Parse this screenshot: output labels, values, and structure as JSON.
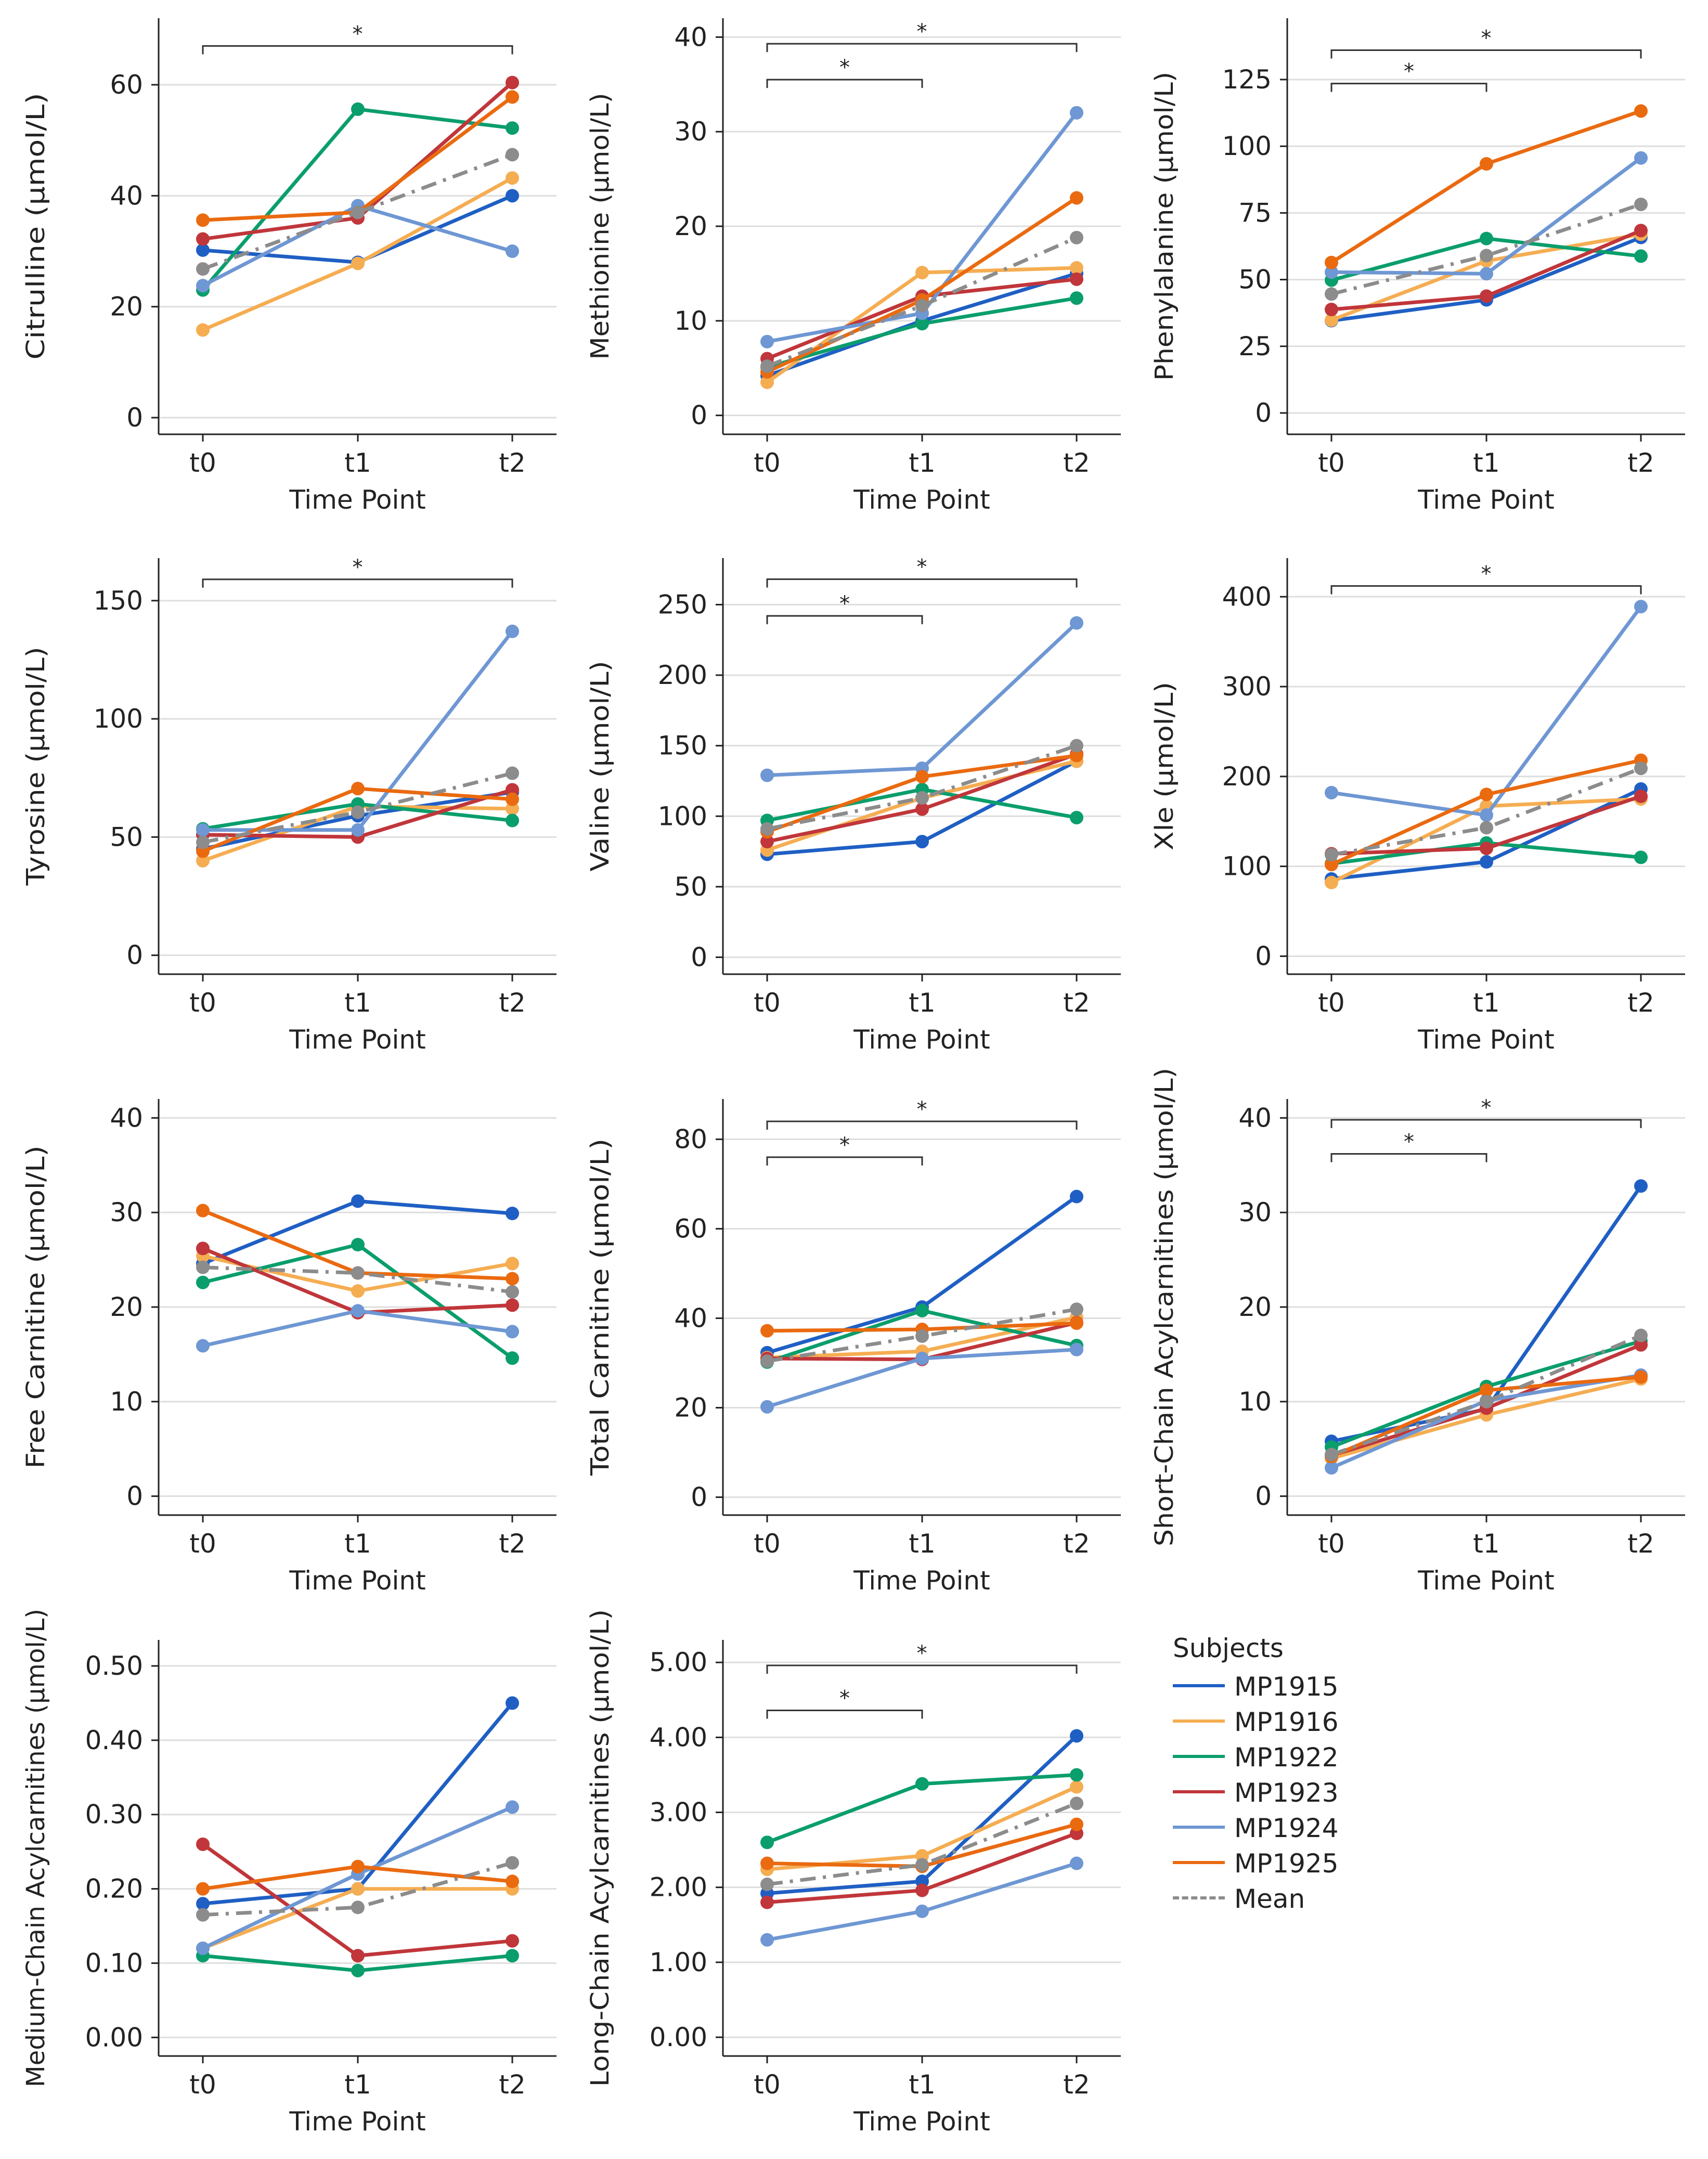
{
  "x_label": "Time Point",
  "legend": {
    "title": "Subjects",
    "items": [
      {
        "name": "MP1915",
        "color": "#1f5fc4",
        "dashed": false
      },
      {
        "name": "MP1916",
        "color": "#f5ad52",
        "dashed": false
      },
      {
        "name": "MP1922",
        "color": "#0a9e6c",
        "dashed": false
      },
      {
        "name": "MP1923",
        "color": "#c0363a",
        "dashed": false
      },
      {
        "name": "MP1924",
        "color": "#6e97d3",
        "dashed": false
      },
      {
        "name": "MP1925",
        "color": "#ea6a10",
        "dashed": false
      },
      {
        "name": "Mean",
        "color": "#8c8c8c",
        "dashed": true
      }
    ]
  },
  "chart_data": [
    {
      "type": "line",
      "title": "Citrulline",
      "ylabel": "Citrulline (µmol/L)",
      "xlabel": "Time Point",
      "categories": [
        "t0",
        "t1",
        "t2"
      ],
      "ylim": [
        -3,
        72
      ],
      "yticks": [
        0,
        20,
        40,
        60
      ],
      "ytick_labels": [
        "0",
        "20",
        "40",
        "60"
      ],
      "series": [
        {
          "name": "MP1915",
          "values": [
            30.2,
            28.0,
            40.0
          ]
        },
        {
          "name": "MP1916",
          "values": [
            15.8,
            27.8,
            43.2
          ]
        },
        {
          "name": "MP1922",
          "values": [
            23.0,
            55.6,
            52.2
          ]
        },
        {
          "name": "MP1923",
          "values": [
            32.2,
            36.0,
            60.4
          ]
        },
        {
          "name": "MP1924",
          "values": [
            23.8,
            38.2,
            30.0
          ]
        },
        {
          "name": "MP1925",
          "values": [
            35.6,
            37.0,
            57.8
          ]
        },
        {
          "name": "Mean",
          "values": [
            26.8,
            37.0,
            47.4
          ]
        }
      ],
      "significance": [
        {
          "from": 0,
          "to": 2,
          "label": "*",
          "level": 67
        }
      ]
    },
    {
      "type": "line",
      "title": "Methionine",
      "ylabel": "Methionine (µmol/L)",
      "xlabel": "Time Point",
      "categories": [
        "t0",
        "t1",
        "t2"
      ],
      "ylim": [
        -2,
        42
      ],
      "yticks": [
        0,
        10,
        20,
        30,
        40
      ],
      "ytick_labels": [
        "0",
        "10",
        "20",
        "30",
        "40"
      ],
      "series": [
        {
          "name": "MP1915",
          "values": [
            4.2,
            10.0,
            15.0
          ]
        },
        {
          "name": "MP1916",
          "values": [
            3.5,
            15.1,
            15.6
          ]
        },
        {
          "name": "MP1922",
          "values": [
            5.1,
            9.7,
            12.4
          ]
        },
        {
          "name": "MP1923",
          "values": [
            6.0,
            12.6,
            14.4
          ]
        },
        {
          "name": "MP1924",
          "values": [
            7.8,
            10.8,
            32.0
          ]
        },
        {
          "name": "MP1925",
          "values": [
            4.6,
            12.2,
            23.0
          ]
        },
        {
          "name": "Mean",
          "values": [
            5.2,
            11.6,
            18.8
          ]
        }
      ],
      "significance": [
        {
          "from": 0,
          "to": 1,
          "label": "*",
          "level": 35.5
        },
        {
          "from": 0,
          "to": 2,
          "label": "*",
          "level": 39.3
        }
      ]
    },
    {
      "type": "line",
      "title": "Phenylalanine",
      "ylabel": "Phenylalanine (µmol/L)",
      "xlabel": "Time Point",
      "categories": [
        "t0",
        "t1",
        "t2"
      ],
      "ylim": [
        -8,
        148
      ],
      "yticks": [
        0,
        25,
        50,
        75,
        100,
        125
      ],
      "ytick_labels": [
        "0",
        "25",
        "50",
        "75",
        "100",
        "125"
      ],
      "series": [
        {
          "name": "MP1915",
          "values": [
            34.6,
            42.4,
            65.8
          ]
        },
        {
          "name": "MP1916",
          "values": [
            34.8,
            57.0,
            67.0
          ]
        },
        {
          "name": "MP1922",
          "values": [
            49.8,
            65.4,
            58.8
          ]
        },
        {
          "name": "MP1923",
          "values": [
            38.8,
            43.8,
            68.4
          ]
        },
        {
          "name": "MP1924",
          "values": [
            52.8,
            52.2,
            95.6
          ]
        },
        {
          "name": "MP1925",
          "values": [
            56.4,
            93.4,
            113.2
          ]
        },
        {
          "name": "Mean",
          "values": [
            44.6,
            59.0,
            78.2
          ]
        }
      ],
      "significance": [
        {
          "from": 0,
          "to": 1,
          "label": "*",
          "level": 123.5
        },
        {
          "from": 0,
          "to": 2,
          "label": "*",
          "level": 136
        }
      ]
    },
    {
      "type": "line",
      "title": "Tyrosine",
      "ylabel": "Tyrosine (µmol/L)",
      "xlabel": "Time Point",
      "categories": [
        "t0",
        "t1",
        "t2"
      ],
      "ylim": [
        -8,
        168
      ],
      "yticks": [
        0,
        50,
        100,
        150
      ],
      "ytick_labels": [
        "0",
        "50",
        "100",
        "150"
      ],
      "series": [
        {
          "name": "MP1915",
          "values": [
            45.0,
            59.0,
            69.0
          ]
        },
        {
          "name": "MP1916",
          "values": [
            40.0,
            63.0,
            62.0
          ]
        },
        {
          "name": "MP1922",
          "values": [
            53.5,
            64.0,
            57.0
          ]
        },
        {
          "name": "MP1923",
          "values": [
            51.0,
            50.0,
            70.0
          ]
        },
        {
          "name": "MP1924",
          "values": [
            53.0,
            53.0,
            137.0
          ]
        },
        {
          "name": "MP1925",
          "values": [
            44.0,
            70.5,
            66.0
          ]
        },
        {
          "name": "Mean",
          "values": [
            47.8,
            60.5,
            77.0
          ]
        }
      ],
      "significance": [
        {
          "from": 0,
          "to": 2,
          "label": "*",
          "level": 159
        }
      ]
    },
    {
      "type": "line",
      "title": "Valine",
      "ylabel": "Valine (µmol/L)",
      "xlabel": "Time Point",
      "categories": [
        "t0",
        "t1",
        "t2"
      ],
      "ylim": [
        -12,
        283
      ],
      "yticks": [
        0,
        50,
        100,
        150,
        200,
        250
      ],
      "ytick_labels": [
        "0",
        "50",
        "100",
        "150",
        "200",
        "250"
      ],
      "series": [
        {
          "name": "MP1915",
          "values": [
            73.0,
            82.0,
            139.0
          ]
        },
        {
          "name": "MP1916",
          "values": [
            76.0,
            113.0,
            139.0
          ]
        },
        {
          "name": "MP1922",
          "values": [
            97.0,
            119.0,
            99.0
          ]
        },
        {
          "name": "MP1923",
          "values": [
            82.0,
            105.0,
            144.0
          ]
        },
        {
          "name": "MP1924",
          "values": [
            129.0,
            134.0,
            237.0
          ]
        },
        {
          "name": "MP1925",
          "values": [
            89.0,
            128.0,
            143.0
          ]
        },
        {
          "name": "Mean",
          "values": [
            91.0,
            113.0,
            150.0
          ]
        }
      ],
      "significance": [
        {
          "from": 0,
          "to": 1,
          "label": "*",
          "level": 242
        },
        {
          "from": 0,
          "to": 2,
          "label": "*",
          "level": 268
        }
      ]
    },
    {
      "type": "line",
      "title": "Xle",
      "ylabel": "Xle (µmol/L)",
      "xlabel": "Time Point",
      "categories": [
        "t0",
        "t1",
        "t2"
      ],
      "ylim": [
        -20,
        443
      ],
      "yticks": [
        0,
        100,
        200,
        300,
        400
      ],
      "ytick_labels": [
        "0",
        "100",
        "200",
        "300",
        "400"
      ],
      "series": [
        {
          "name": "MP1915",
          "values": [
            86.0,
            105.0,
            186.0
          ]
        },
        {
          "name": "MP1916",
          "values": [
            82.0,
            167.0,
            175.0
          ]
        },
        {
          "name": "MP1922",
          "values": [
            103.0,
            126.0,
            110.0
          ]
        },
        {
          "name": "MP1923",
          "values": [
            114.0,
            120.0,
            178.0
          ]
        },
        {
          "name": "MP1924",
          "values": [
            182.0,
            157.0,
            389.0
          ]
        },
        {
          "name": "MP1925",
          "values": [
            102.0,
            180.0,
            218.0
          ]
        },
        {
          "name": "Mean",
          "values": [
            113.0,
            143.0,
            209.0
          ]
        }
      ],
      "significance": [
        {
          "from": 0,
          "to": 2,
          "label": "*",
          "level": 412
        }
      ]
    },
    {
      "type": "line",
      "title": "Free Carnitine",
      "ylabel": "Free Carnitine (µmol/L)",
      "xlabel": "Time Point",
      "categories": [
        "t0",
        "t1",
        "t2"
      ],
      "ylim": [
        -2,
        42
      ],
      "yticks": [
        0,
        10,
        20,
        30,
        40
      ],
      "ytick_labels": [
        "0",
        "10",
        "20",
        "30",
        "40"
      ],
      "series": [
        {
          "name": "MP1915",
          "values": [
            24.6,
            31.2,
            29.9
          ]
        },
        {
          "name": "MP1916",
          "values": [
            25.4,
            21.7,
            24.6
          ]
        },
        {
          "name": "MP1922",
          "values": [
            22.6,
            26.6,
            14.6
          ]
        },
        {
          "name": "MP1923",
          "values": [
            26.2,
            19.4,
            20.2
          ]
        },
        {
          "name": "MP1924",
          "values": [
            15.9,
            19.6,
            17.4
          ]
        },
        {
          "name": "MP1925",
          "values": [
            30.2,
            23.6,
            23.0
          ]
        },
        {
          "name": "Mean",
          "values": [
            24.2,
            23.6,
            21.6
          ]
        }
      ],
      "significance": []
    },
    {
      "type": "line",
      "title": "Total Carnitine",
      "ylabel": "Total Carnitine (µmol/L)",
      "xlabel": "Time Point",
      "categories": [
        "t0",
        "t1",
        "t2"
      ],
      "ylim": [
        -4,
        89
      ],
      "yticks": [
        0,
        20,
        40,
        60,
        80
      ],
      "ytick_labels": [
        "0",
        "20",
        "40",
        "60",
        "80"
      ],
      "series": [
        {
          "name": "MP1915",
          "values": [
            32.3,
            42.5,
            67.2
          ]
        },
        {
          "name": "MP1916",
          "values": [
            31.2,
            32.6,
            40.2
          ]
        },
        {
          "name": "MP1922",
          "values": [
            30.2,
            41.7,
            33.9
          ]
        },
        {
          "name": "MP1923",
          "values": [
            31.0,
            30.8,
            39.0
          ]
        },
        {
          "name": "MP1924",
          "values": [
            20.2,
            31.0,
            33.0
          ]
        },
        {
          "name": "MP1925",
          "values": [
            37.2,
            37.5,
            38.9
          ]
        },
        {
          "name": "Mean",
          "values": [
            30.4,
            36.0,
            42.0
          ]
        }
      ],
      "significance": [
        {
          "from": 0,
          "to": 1,
          "label": "*",
          "level": 76
        },
        {
          "from": 0,
          "to": 2,
          "label": "*",
          "level": 84
        }
      ]
    },
    {
      "type": "line",
      "title": "Short-Chain Acylcarnitines",
      "ylabel": "Short-Chain Acylcarnitines (µmol/L)",
      "xlabel": "Time Point",
      "categories": [
        "t0",
        "t1",
        "t2"
      ],
      "ylim": [
        -2,
        42
      ],
      "yticks": [
        0,
        10,
        20,
        30,
        40
      ],
      "ytick_labels": [
        "0",
        "10",
        "20",
        "30",
        "40"
      ],
      "series": [
        {
          "name": "MP1915",
          "values": [
            5.8,
            9.2,
            32.8
          ]
        },
        {
          "name": "MP1916",
          "values": [
            4.0,
            8.6,
            12.4
          ]
        },
        {
          "name": "MP1922",
          "values": [
            5.2,
            11.6,
            16.4
          ]
        },
        {
          "name": "MP1923",
          "values": [
            4.3,
            9.3,
            16.0
          ]
        },
        {
          "name": "MP1924",
          "values": [
            3.0,
            10.1,
            12.8
          ]
        },
        {
          "name": "MP1925",
          "values": [
            4.2,
            11.2,
            12.6
          ]
        },
        {
          "name": "Mean",
          "values": [
            4.4,
            10.0,
            17.0
          ]
        }
      ],
      "significance": [
        {
          "from": 0,
          "to": 1,
          "label": "*",
          "level": 36.2
        },
        {
          "from": 0,
          "to": 2,
          "label": "*",
          "level": 39.8
        }
      ]
    },
    {
      "type": "line",
      "title": "Medium-Chain Acylcarnitines",
      "ylabel": "Medium-Chain Acylcarnitines (µmol/L)",
      "xlabel": "Time Point",
      "categories": [
        "t0",
        "t1",
        "t2"
      ],
      "ylim": [
        -0.025,
        0.535
      ],
      "yticks": [
        0,
        0.1,
        0.2,
        0.3,
        0.4,
        0.5
      ],
      "ytick_labels": [
        "0.00",
        "0.10",
        "0.20",
        "0.30",
        "0.40",
        "0.50"
      ],
      "series": [
        {
          "name": "MP1915",
          "values": [
            0.18,
            0.2,
            0.45
          ]
        },
        {
          "name": "MP1916",
          "values": [
            0.12,
            0.2,
            0.2
          ]
        },
        {
          "name": "MP1922",
          "values": [
            0.11,
            0.09,
            0.11
          ]
        },
        {
          "name": "MP1923",
          "values": [
            0.26,
            0.11,
            0.13
          ]
        },
        {
          "name": "MP1924",
          "values": [
            0.12,
            0.22,
            0.31
          ]
        },
        {
          "name": "MP1925",
          "values": [
            0.2,
            0.23,
            0.21
          ]
        },
        {
          "name": "Mean",
          "values": [
            0.165,
            0.175,
            0.235
          ]
        }
      ],
      "significance": []
    },
    {
      "type": "line",
      "title": "Long-Chain Acylcarnitines",
      "ylabel": "Long-Chain Acylcarnitines (µmol/L)",
      "xlabel": "Time Point",
      "categories": [
        "t0",
        "t1",
        "t2"
      ],
      "ylim": [
        -0.25,
        5.3
      ],
      "yticks": [
        0,
        1,
        2,
        3,
        4,
        5
      ],
      "ytick_labels": [
        "0.00",
        "1.00",
        "2.00",
        "3.00",
        "4.00",
        "5.00"
      ],
      "series": [
        {
          "name": "MP1915",
          "values": [
            1.92,
            2.08,
            4.02
          ]
        },
        {
          "name": "MP1916",
          "values": [
            2.24,
            2.42,
            3.34
          ]
        },
        {
          "name": "MP1922",
          "values": [
            2.6,
            3.38,
            3.5
          ]
        },
        {
          "name": "MP1923",
          "values": [
            1.8,
            1.96,
            2.72
          ]
        },
        {
          "name": "MP1924",
          "values": [
            1.3,
            1.68,
            2.32
          ]
        },
        {
          "name": "MP1925",
          "values": [
            2.32,
            2.28,
            2.84
          ]
        },
        {
          "name": "Mean",
          "values": [
            2.04,
            2.3,
            3.12
          ]
        }
      ],
      "significance": [
        {
          "from": 0,
          "to": 1,
          "label": "*",
          "level": 4.36
        },
        {
          "from": 0,
          "to": 2,
          "label": "*",
          "level": 4.96
        }
      ]
    }
  ]
}
